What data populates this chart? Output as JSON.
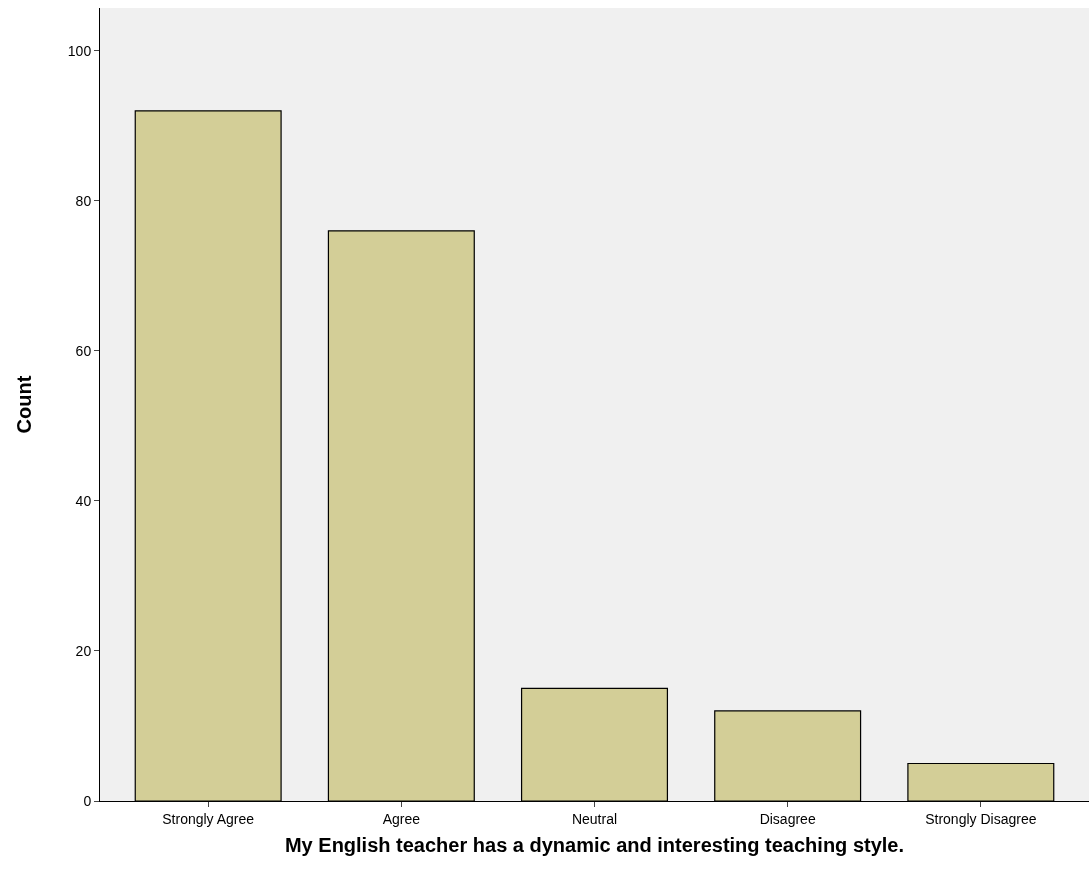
{
  "chart_data": {
    "type": "bar",
    "xlabel": "My English teacher has a dynamic and interesting teaching style.",
    "ylabel": "Count",
    "categories": [
      "Strongly Agree",
      "Agree",
      "Neutral",
      "Disagree",
      "Strongly Disagree"
    ],
    "values": [
      92,
      76,
      15,
      12,
      5
    ],
    "color": "#d3ce97",
    "ylim": [
      0,
      105.7
    ],
    "yticks": [
      0,
      20,
      40,
      60,
      80,
      100
    ],
    "grid": false,
    "legend": false
  }
}
